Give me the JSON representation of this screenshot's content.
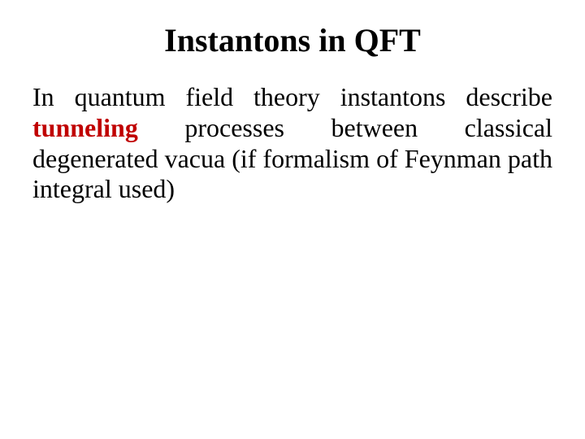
{
  "slide": {
    "title": "Instantons in QFT",
    "p1a": "In quantum field theory instantons describe ",
    "p1b": "tunneling",
    "p1c": " processes between classical degenerated vacua (if formalism of Feynman path integral used)"
  },
  "style": {
    "background_color": "#ffffff",
    "text_color": "#000000",
    "accent_color": "#c00000",
    "title_fontsize": 40,
    "body_fontsize": 32,
    "font_family": "Times New Roman"
  }
}
